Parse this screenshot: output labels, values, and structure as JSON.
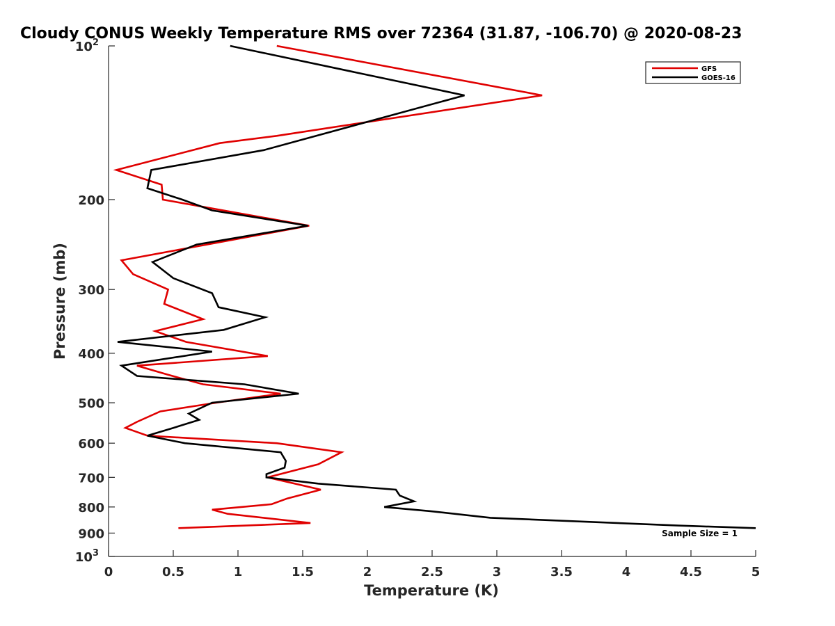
{
  "chart_data": {
    "type": "line",
    "title": "Cloudy CONUS Weekly Temperature RMS over 72364 (31.87, -106.70) @ 2020-08-23",
    "xlabel": "Temperature (K)",
    "ylabel": "Pressure (mb)",
    "xlim": [
      0,
      5
    ],
    "ylim": [
      100,
      1000
    ],
    "y_scale": "log",
    "y_reversed": true,
    "x_ticks": [
      "0",
      "0.5",
      "1",
      "1.5",
      "2",
      "2.5",
      "3",
      "3.5",
      "4",
      "4.5",
      "5"
    ],
    "y_ticks": [
      {
        "value": 100,
        "label": "10",
        "exp": "2"
      },
      {
        "value": 200,
        "label": "200"
      },
      {
        "value": 300,
        "label": "300"
      },
      {
        "value": 400,
        "label": "400"
      },
      {
        "value": 500,
        "label": "500"
      },
      {
        "value": 600,
        "label": "600"
      },
      {
        "value": 700,
        "label": "700"
      },
      {
        "value": 800,
        "label": "800"
      },
      {
        "value": 900,
        "label": "900"
      },
      {
        "value": 1000,
        "label": "10",
        "exp": "3"
      }
    ],
    "grid": false,
    "legend_position": "top-right",
    "annotation": "Sample Size = 1",
    "series": [
      {
        "name": "GFS",
        "color": "#e00000",
        "points": [
          [
            1.3,
            100
          ],
          [
            3.35,
            125
          ],
          [
            1.3,
            150
          ],
          [
            0.86,
            155
          ],
          [
            0.06,
            175
          ],
          [
            0.41,
            187
          ],
          [
            0.42,
            200
          ],
          [
            1.55,
            225
          ],
          [
            0.57,
            250
          ],
          [
            0.1,
            263
          ],
          [
            0.19,
            280
          ],
          [
            0.46,
            300
          ],
          [
            0.43,
            320
          ],
          [
            0.73,
            343
          ],
          [
            0.36,
            362
          ],
          [
            0.6,
            380
          ],
          [
            1.23,
            405
          ],
          [
            0.22,
            423
          ],
          [
            0.45,
            440
          ],
          [
            0.73,
            460
          ],
          [
            1.33,
            480
          ],
          [
            0.83,
            500
          ],
          [
            0.4,
            520
          ],
          [
            0.22,
            545
          ],
          [
            0.13,
            560
          ],
          [
            0.3,
            580
          ],
          [
            1.3,
            600
          ],
          [
            1.8,
            625
          ],
          [
            1.62,
            660
          ],
          [
            1.23,
            700
          ],
          [
            1.64,
            740
          ],
          [
            1.38,
            770
          ],
          [
            1.26,
            790
          ],
          [
            0.8,
            810
          ],
          [
            0.92,
            825
          ],
          [
            1.56,
            860
          ],
          [
            0.54,
            880
          ]
        ]
      },
      {
        "name": "GOES-16",
        "color": "#000000",
        "points": [
          [
            0.94,
            100
          ],
          [
            2.75,
            125
          ],
          [
            1.2,
            160
          ],
          [
            0.33,
            175
          ],
          [
            0.3,
            190
          ],
          [
            0.57,
            200
          ],
          [
            0.8,
            210
          ],
          [
            1.54,
            225
          ],
          [
            0.68,
            245
          ],
          [
            0.34,
            265
          ],
          [
            0.5,
            285
          ],
          [
            0.8,
            305
          ],
          [
            0.85,
            325
          ],
          [
            1.21,
            340
          ],
          [
            0.89,
            360
          ],
          [
            0.07,
            380
          ],
          [
            0.8,
            397
          ],
          [
            0.1,
            423
          ],
          [
            0.22,
            443
          ],
          [
            1.05,
            460
          ],
          [
            1.47,
            480
          ],
          [
            0.8,
            500
          ],
          [
            0.62,
            525
          ],
          [
            0.7,
            540
          ],
          [
            0.5,
            560
          ],
          [
            0.3,
            580
          ],
          [
            0.59,
            600
          ],
          [
            1.33,
            625
          ],
          [
            1.37,
            650
          ],
          [
            1.36,
            670
          ],
          [
            1.22,
            690
          ],
          [
            1.22,
            700
          ],
          [
            1.62,
            720
          ],
          [
            2.22,
            740
          ],
          [
            2.25,
            760
          ],
          [
            2.36,
            780
          ],
          [
            2.13,
            800
          ],
          [
            2.48,
            815
          ],
          [
            2.95,
            840
          ],
          [
            4.4,
            870
          ],
          [
            5.0,
            880
          ]
        ]
      }
    ]
  }
}
